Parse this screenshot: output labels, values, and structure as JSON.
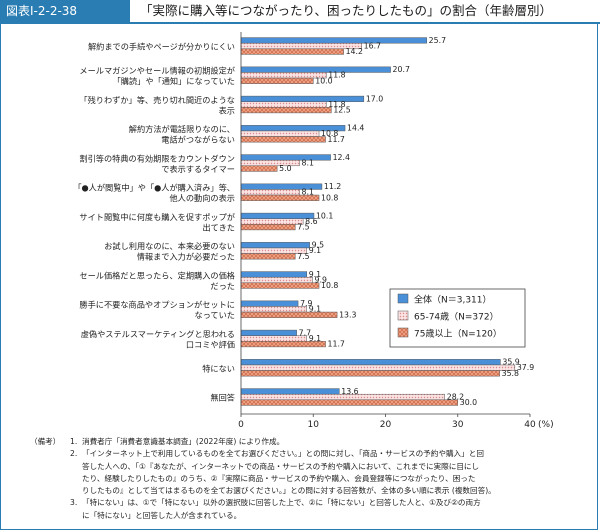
{
  "header": {
    "figure_label": "図表Ⅰ-2-2-38",
    "title": "「実際に購入等につながったり、困ったりしたもの」の割合（年齢層別）"
  },
  "chart_data": {
    "type": "bar",
    "orientation": "horizontal",
    "categories": [
      [
        "解約までの手続やページが分かりにくい"
      ],
      [
        "メールマガジンやセール情報の初期設定が",
        "「購読」や「通知」になっていた"
      ],
      [
        "「残りわずか」等、売り切れ間近のような",
        "表示"
      ],
      [
        "解約方法が電話限りなのに、",
        "電話がつながらない"
      ],
      [
        "割引等の特典の有効期限をカウントダウン",
        "で表示するタイマー"
      ],
      [
        "「●人が閲覧中」や「●人が購入済み」等、",
        "他人の動向の表示"
      ],
      [
        "サイト閲覧中に何度も購入を促すポップが",
        "出てきた"
      ],
      [
        "お試し利用なのに、本来必要のない",
        "情報まで入力が必要だった"
      ],
      [
        "セール価格だと思ったら、定期購入の価格",
        "だった"
      ],
      [
        "勝手に不要な商品やオプションがセットに",
        "なっていた"
      ],
      [
        "虚偽やステルスマーケティングと思われる",
        "口コミや評価"
      ],
      [
        "特にない"
      ],
      [
        "無回答"
      ]
    ],
    "series": [
      {
        "name": "全体（N＝3,311）",
        "color": "#4a90d9",
        "pattern": "solid",
        "values": [
          25.7,
          20.7,
          17.0,
          14.4,
          12.4,
          11.2,
          10.1,
          9.5,
          9.1,
          7.9,
          7.7,
          35.9,
          13.6
        ]
      },
      {
        "name": "65-74歳（N=372）",
        "color": "#f2c4c4",
        "pattern": "dots",
        "values": [
          16.7,
          11.8,
          11.8,
          10.8,
          8.1,
          8.1,
          8.6,
          9.1,
          9.9,
          9.1,
          9.1,
          37.9,
          28.2
        ]
      },
      {
        "name": "75歳以上（N=120）",
        "color": "#e8876a",
        "pattern": "crosshatch",
        "values": [
          14.2,
          10.0,
          12.5,
          11.7,
          5.0,
          10.8,
          7.5,
          7.5,
          10.8,
          13.3,
          11.7,
          35.8,
          30.0
        ]
      }
    ],
    "x_ticks": [
      "0",
      "10",
      "20",
      "30",
      "40"
    ],
    "x_unit": "(%)",
    "xlim": [
      0,
      40
    ],
    "grid": false,
    "legend_position": "right-middle",
    "data_labels": true
  },
  "notes": {
    "head": "（備考）",
    "items": [
      {
        "num": "1.",
        "lines": [
          "消費者庁「消費者意識基本調査」(2022年度) により作成。"
        ]
      },
      {
        "num": "2.",
        "lines": [
          "「インターネット上で利用しているものを全てお選びください。」との問に対し、「商品・サービスの予約や購入」と回",
          "答した人への、「①『あなたが、インターネットでの商品・サービスの予約や購入において、これまでに実際に目にし",
          "たり、経験したりしたもの』のうち、②『実際に商品・サービスの予約や購入、会員登録等につながったり、困った",
          "りしたもの』として当てはまるものを全てお選びください。」との問に対する回答数が、全体の多い順に表示 (複数回答)。"
        ]
      },
      {
        "num": "3.",
        "lines": [
          "「特にない」は、①で「特にない」以外の選択肢に回答した上で、②に「特にない」と回答した人と、①及び②の両方",
          "に「特にない」と回答した人が含まれている。"
        ]
      }
    ]
  }
}
